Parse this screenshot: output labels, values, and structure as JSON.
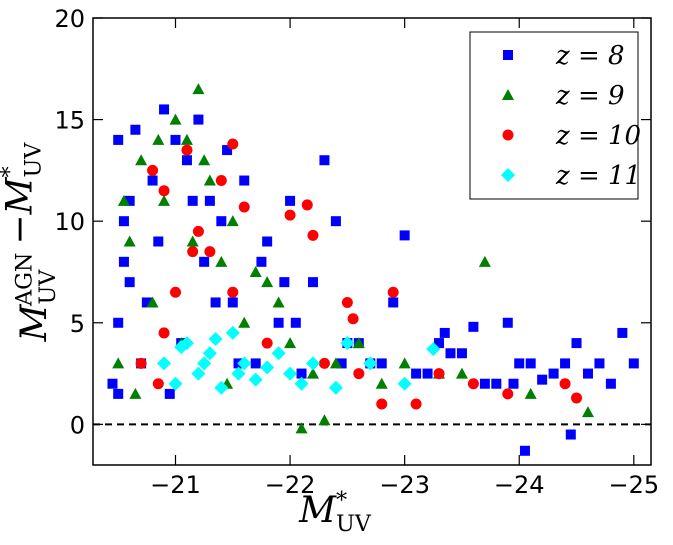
{
  "chart_data": {
    "type": "scatter",
    "xlabel": {
      "main": "M",
      "sup": "*",
      "sub": "UV"
    },
    "ylabel": {
      "term1": "M",
      "term1_sup": "AGN",
      "term1_sub": "UV",
      "minus": "−",
      "term2": "M",
      "term2_sup": "*",
      "term2_sub": "UV"
    },
    "xlim": [
      -20.28,
      -25.15
    ],
    "ylim": [
      -2,
      20
    ],
    "xticks": [
      {
        "value": -21,
        "label": "−21"
      },
      {
        "value": -22,
        "label": "−22"
      },
      {
        "value": -23,
        "label": "−23"
      },
      {
        "value": -24,
        "label": "−24"
      },
      {
        "value": -25,
        "label": "−25"
      }
    ],
    "yticks": [
      0,
      5,
      10,
      15,
      20
    ],
    "hline": 0,
    "legend": "upper right",
    "series": [
      {
        "name": "z = 8",
        "color": "#0000ff",
        "marker": "square",
        "x": [
          -20.45,
          -20.5,
          -20.55,
          -20.6,
          -20.5,
          -20.7,
          -20.8,
          -20.9,
          -21.0,
          -21.1,
          -21.2,
          -21.3,
          -21.4,
          -20.6,
          -20.75,
          -20.85,
          -21.05,
          -21.25,
          -21.5,
          -21.6,
          -21.7,
          -21.8,
          -21.9,
          -22.0,
          -22.1,
          -22.2,
          -22.3,
          -22.5,
          -22.7,
          -22.9,
          -23.1,
          -23.3,
          -23.5,
          -23.7,
          -23.9,
          -24.1,
          -24.3,
          -24.5,
          -24.7,
          -24.9,
          -25.0,
          -20.5,
          -20.65,
          -21.15,
          -21.35,
          -21.55,
          -21.75,
          -22.05,
          -22.4,
          -22.6,
          -22.8,
          -23.0,
          -23.2,
          -23.4,
          -23.6,
          -23.8,
          -24.0,
          -24.2,
          -24.4,
          -24.6,
          -24.8,
          -20.55,
          -20.95,
          -21.45,
          -21.95,
          -22.45,
          -23.35,
          -24.05,
          -23.95,
          -24.45
        ],
        "y": [
          2,
          5,
          8,
          11,
          14,
          3,
          12,
          15.5,
          14,
          13,
          15,
          11,
          10,
          7,
          6,
          9,
          4,
          8,
          6,
          12,
          3,
          9,
          5,
          11,
          2.5,
          7,
          13,
          4,
          3,
          6,
          2.5,
          4,
          3.5,
          2,
          5,
          3,
          2.5,
          4,
          3,
          4.5,
          3,
          1.5,
          14.5,
          11,
          6,
          3,
          8,
          5,
          10,
          4,
          3,
          9.3,
          2.5,
          3.5,
          4.8,
          2,
          3,
          2.2,
          3,
          2.5,
          2,
          10,
          1.5,
          13.5,
          7,
          3,
          4.5,
          -1.3,
          2,
          -0.5
        ]
      },
      {
        "name": "z = 9",
        "color": "#007f00",
        "marker": "triangle",
        "x": [
          -20.5,
          -20.6,
          -20.7,
          -20.8,
          -20.9,
          -21.0,
          -21.1,
          -21.2,
          -21.3,
          -21.4,
          -21.5,
          -21.6,
          -21.8,
          -22.0,
          -22.2,
          -22.4,
          -22.6,
          -22.8,
          -23.0,
          -23.3,
          -23.7,
          -24.1,
          -24.6,
          -20.65,
          -20.85,
          -21.05,
          -21.25,
          -21.45,
          -21.7,
          -21.9,
          -22.1,
          -21.15,
          -20.55,
          -22.3,
          -23.5
        ],
        "y": [
          3,
          9,
          13,
          6,
          11,
          15,
          14,
          16.5,
          12,
          8,
          10,
          5,
          7,
          4,
          2.5,
          3,
          4,
          2,
          3,
          2.5,
          8,
          1.5,
          0.6,
          1.5,
          14,
          4,
          13,
          2,
          7.5,
          6,
          -0.2,
          9,
          11,
          0.2,
          2.5
        ]
      },
      {
        "name": "z = 10",
        "color": "#ff0000",
        "marker": "circle",
        "x": [
          -20.7,
          -20.8,
          -20.85,
          -20.9,
          -21.0,
          -21.1,
          -21.2,
          -21.3,
          -21.5,
          -21.6,
          -21.8,
          -22.0,
          -22.15,
          -22.3,
          -22.5,
          -22.6,
          -22.8,
          -22.9,
          -23.1,
          -23.3,
          -23.6,
          -23.9,
          -24.4,
          -24.5,
          -21.15,
          -21.5,
          -22.2,
          -20.9,
          -22.55,
          -21.4
        ],
        "y": [
          3,
          12.5,
          2,
          11.5,
          6.5,
          13.5,
          9.5,
          8.5,
          13.8,
          10.7,
          4,
          10.3,
          10.8,
          3,
          6,
          2.5,
          1,
          6.5,
          1,
          2.5,
          2,
          1.5,
          2,
          1.3,
          8.5,
          6.5,
          9.3,
          4.5,
          5.2,
          12
        ]
      },
      {
        "name": "z = 11",
        "color": "#00ffff",
        "marker": "diamond",
        "x": [
          -20.9,
          -21.0,
          -21.1,
          -21.2,
          -21.3,
          -21.4,
          -21.5,
          -21.6,
          -21.7,
          -21.8,
          -21.9,
          -22.0,
          -22.1,
          -22.2,
          -22.4,
          -22.5,
          -22.7,
          -23.0,
          -23.25,
          -21.05,
          -21.35,
          -21.55,
          -21.25
        ],
        "y": [
          3,
          2,
          4,
          2.5,
          3.5,
          1.8,
          4.5,
          3,
          2.2,
          2.8,
          3.5,
          2.5,
          2,
          3,
          1.8,
          4,
          3,
          2,
          3.7,
          3.8,
          4.2,
          2.5,
          3
        ]
      }
    ]
  }
}
